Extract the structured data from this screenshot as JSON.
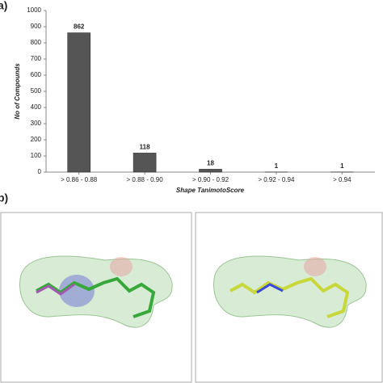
{
  "panel_labels": [
    "a)",
    "b)"
  ],
  "chart_data": {
    "type": "bar",
    "x_label": "Shape TanimotoScore",
    "y_label": "No of Compounds",
    "categories": [
      "> 0.86 - 0.88",
      "> 0.88 - 0.90",
      "> 0.90 - 0.92",
      "> 0.92 - 0.94",
      "> 0.94"
    ],
    "values": [
      862,
      118,
      18,
      1,
      1
    ],
    "color": "#555555",
    "ylim": [
      0,
      1000
    ],
    "yticks": [
      0,
      100,
      200,
      300,
      400,
      500,
      600,
      700,
      800,
      900,
      1000
    ]
  }
}
